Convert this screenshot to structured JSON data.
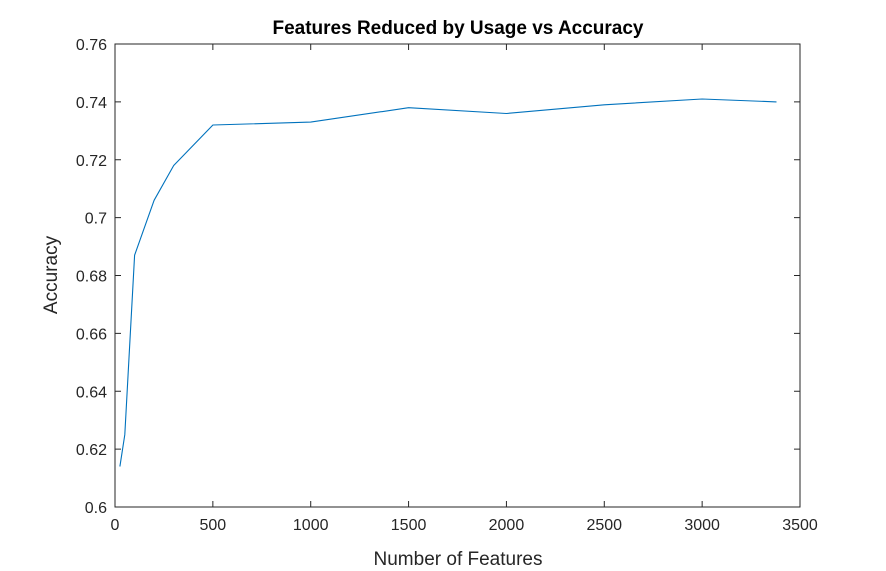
{
  "chart_data": {
    "type": "line",
    "title": "Features Reduced by Usage vs Accuracy",
    "xlabel": "Number of Features",
    "ylabel": "Accuracy",
    "xlim": [
      0,
      3500
    ],
    "ylim": [
      0.6,
      0.76
    ],
    "x_ticks": [
      0,
      500,
      1000,
      1500,
      2000,
      2500,
      3000,
      3500
    ],
    "x_tick_labels": [
      "0",
      "500",
      "1000",
      "1500",
      "2000",
      "2500",
      "3000",
      "3500"
    ],
    "y_ticks": [
      0.6,
      0.62,
      0.64,
      0.66,
      0.68,
      0.7,
      0.72,
      0.74,
      0.76
    ],
    "y_tick_labels": [
      "0.6",
      "0.62",
      "0.64",
      "0.66",
      "0.68",
      "0.7",
      "0.72",
      "0.74",
      "0.76"
    ],
    "grid": false,
    "series": [
      {
        "color": "#0072BD",
        "x": [
          25,
          50,
          100,
          200,
          300,
          500,
          1000,
          1500,
          2000,
          2500,
          3000,
          3380
        ],
        "y": [
          0.614,
          0.625,
          0.687,
          0.706,
          0.718,
          0.732,
          0.733,
          0.738,
          0.736,
          0.739,
          0.741,
          0.74
        ]
      }
    ]
  }
}
